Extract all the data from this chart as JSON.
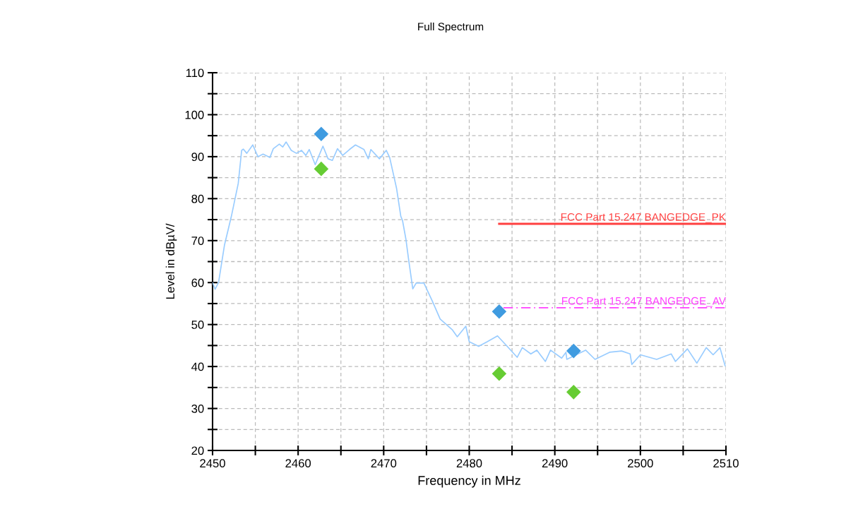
{
  "chart_data": {
    "type": "line",
    "title": "Full Spectrum",
    "xlabel": "Frequency in MHz",
    "ylabel": "Level in dBµV/",
    "xlim": [
      2450,
      2510
    ],
    "ylim": [
      20,
      110
    ],
    "xticks": [
      2450,
      {
        "value": 2455,
        "label": null
      },
      2460,
      {
        "value": 2465,
        "label": null
      },
      2470,
      {
        "value": 2475,
        "label": null
      },
      2480,
      {
        "value": 2485,
        "label": null
      },
      2490,
      {
        "value": 2495,
        "label": null
      },
      2500,
      {
        "value": 2505,
        "label": null
      },
      2510
    ],
    "yticks": [
      20,
      {
        "value": 25,
        "label": null
      },
      30,
      {
        "value": 35,
        "label": null
      },
      40,
      {
        "value": 45,
        "label": null
      },
      50,
      {
        "value": 55,
        "label": null
      },
      60,
      {
        "value": 65,
        "label": null
      },
      70,
      {
        "value": 75,
        "label": null
      },
      80,
      {
        "value": 85,
        "label": null
      },
      90,
      {
        "value": 95,
        "label": null
      },
      100,
      {
        "value": 105,
        "label": null
      },
      110
    ],
    "grid": true,
    "legend": false,
    "series": [
      {
        "color": "#99ccff",
        "marker": "none",
        "line_style": "solid",
        "x": [
          2450,
          2450.3,
          2450.7,
          2451.4,
          2452.2,
          2453.0,
          2453.4,
          2453.6,
          2454.0,
          2454.7,
          2455.3,
          2455.9,
          2456.7,
          2457.1,
          2457.8,
          2458.2,
          2458.6,
          2459.2,
          2459.8,
          2460.4,
          2460.9,
          2461.3,
          2462.0,
          2462.9,
          2463.5,
          2464.0,
          2464.6,
          2465.2,
          2466.0,
          2466.7,
          2467.7,
          2468.2,
          2468.5,
          2469.5,
          2470.3,
          2470.7,
          2471.5,
          2472.0,
          2472.2,
          2472.6,
          2472.9,
          2473.4,
          2473.8,
          2474.7,
          2475.7,
          2476.6,
          2478.0,
          2478.6,
          2479.6,
          2480.0,
          2481.1,
          2482.1,
          2483.3,
          2484.3,
          2485.6,
          2486.2,
          2487.2,
          2487.9,
          2488.9,
          2489.5,
          2490.8,
          2491.3,
          2491.4,
          2493.6,
          2494.7,
          2496.4,
          2497.8,
          2498.8,
          2499.0,
          2500.0,
          2501.9,
          2503.6,
          2504.1,
          2505.5,
          2506.6,
          2507.7,
          2508.5,
          2509.3,
          2509.9
        ],
        "values": [
          60.0,
          58.4,
          60.0,
          69.0,
          75.8,
          83.6,
          91.5,
          91.8,
          90.8,
          92.8,
          90.0,
          90.6,
          89.8,
          91.9,
          93.0,
          92.3,
          93.5,
          91.5,
          90.8,
          91.5,
          90.3,
          91.7,
          88.1,
          92.5,
          89.5,
          89.1,
          91.9,
          90.3,
          91.7,
          92.8,
          91.7,
          89.5,
          91.7,
          89.5,
          91.5,
          89.8,
          82.5,
          75.8,
          74.8,
          70.3,
          65.7,
          58.5,
          59.9,
          59.9,
          55.5,
          51.3,
          48.8,
          47.1,
          49.6,
          45.9,
          44.8,
          45.9,
          47.3,
          45.1,
          42.2,
          44.5,
          43.0,
          43.9,
          41.2,
          43.9,
          42.0,
          43.4,
          41.7,
          43.9,
          41.7,
          43.4,
          43.7,
          43.0,
          40.5,
          42.8,
          41.7,
          43.0,
          41.2,
          44.2,
          40.8,
          44.5,
          42.8,
          44.5,
          40.2
        ]
      },
      {
        "name": "FCC Part 15.247 BANGEDGE_PK",
        "color": "#ff4040",
        "marker": "none",
        "line_style": "solid",
        "x": [
          2483.5,
          2510
        ],
        "values": [
          74.0,
          74.0
        ]
      },
      {
        "name": "FCC Part 15.247 BANGEDGE_AV",
        "color": "#ff40ff",
        "marker": "none",
        "line_style": "dashed",
        "x": [
          2484.0,
          2510
        ],
        "values": [
          54.0,
          54.0
        ]
      },
      {
        "type": "scatter",
        "color": "#3f9be0",
        "marker": "diamond",
        "x": [
          2462.7,
          2483.5,
          2492.2
        ],
        "values": [
          95.4,
          53.1,
          43.7
        ]
      },
      {
        "type": "scatter",
        "color": "#66cc33",
        "marker": "diamond",
        "x": [
          2462.7,
          2483.5,
          2492.2
        ],
        "values": [
          87.1,
          38.3,
          33.9
        ]
      }
    ]
  }
}
